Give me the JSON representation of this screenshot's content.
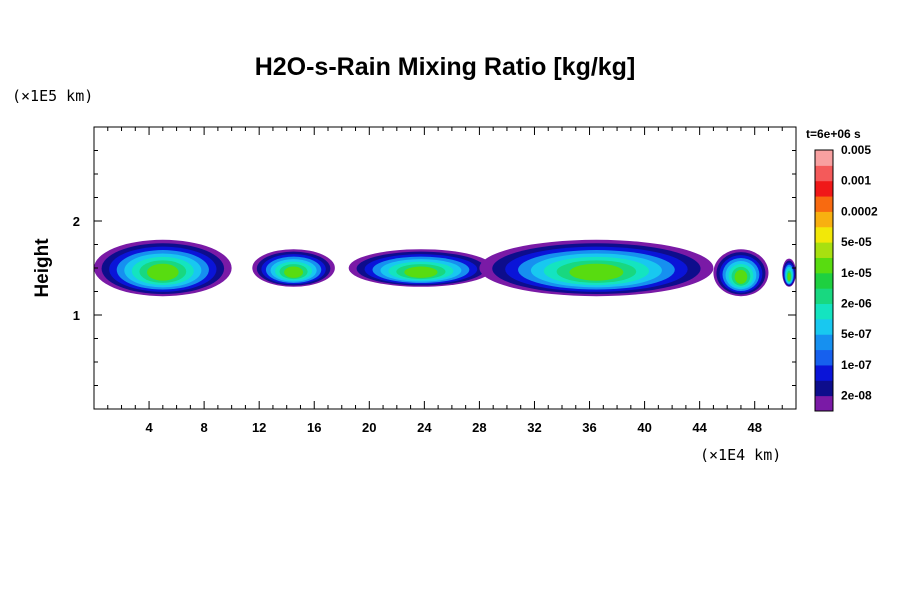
{
  "chart_data": {
    "type": "heatmap",
    "title": "H2O-s-Rain Mixing Ratio [kg/kg]",
    "xlabel": "",
    "ylabel": "Height",
    "x_scale_label": "(×1E4 km)",
    "y_scale_label": "(×1E5 km)",
    "time_label": "t=6e+06 s",
    "xlim": [
      0,
      51
    ],
    "ylim": [
      0,
      3
    ],
    "x_ticks": [
      "4",
      "8",
      "12",
      "16",
      "20",
      "24",
      "28",
      "32",
      "36",
      "40",
      "44",
      "48"
    ],
    "y_ticks": [
      "1",
      "2"
    ],
    "colorbar": {
      "labels": [
        "2e-08",
        "1e-07",
        "5e-07",
        "2e-06",
        "1e-05",
        "5e-05",
        "0.0002",
        "0.001",
        "0.005"
      ],
      "colors": [
        "#7a1aa6",
        "#0d0d8c",
        "#0a14d8",
        "#1660ee",
        "#1690f0",
        "#18c8f0",
        "#14e4c0",
        "#18d880",
        "#1ed040",
        "#58dc10",
        "#a8e010",
        "#f2e808",
        "#f8b010",
        "#f86a10",
        "#f01818",
        "#f45a5a",
        "#f8a0a0"
      ]
    },
    "rain_bands": [
      {
        "x_start": 0.0,
        "x_end": 10.0,
        "bottom": 1.2,
        "top": 1.8
      },
      {
        "x_start": 11.5,
        "x_end": 17.5,
        "bottom": 1.3,
        "top": 1.7
      },
      {
        "x_start": 18.5,
        "x_end": 29.0,
        "bottom": 1.3,
        "top": 1.7
      },
      {
        "x_start": 28.0,
        "x_end": 45.0,
        "bottom": 1.2,
        "top": 1.8
      },
      {
        "x_start": 45.0,
        "x_end": 49.0,
        "bottom": 1.2,
        "top": 1.7
      },
      {
        "x_start": 50.0,
        "x_end": 51.0,
        "bottom": 1.3,
        "top": 1.6
      }
    ]
  }
}
